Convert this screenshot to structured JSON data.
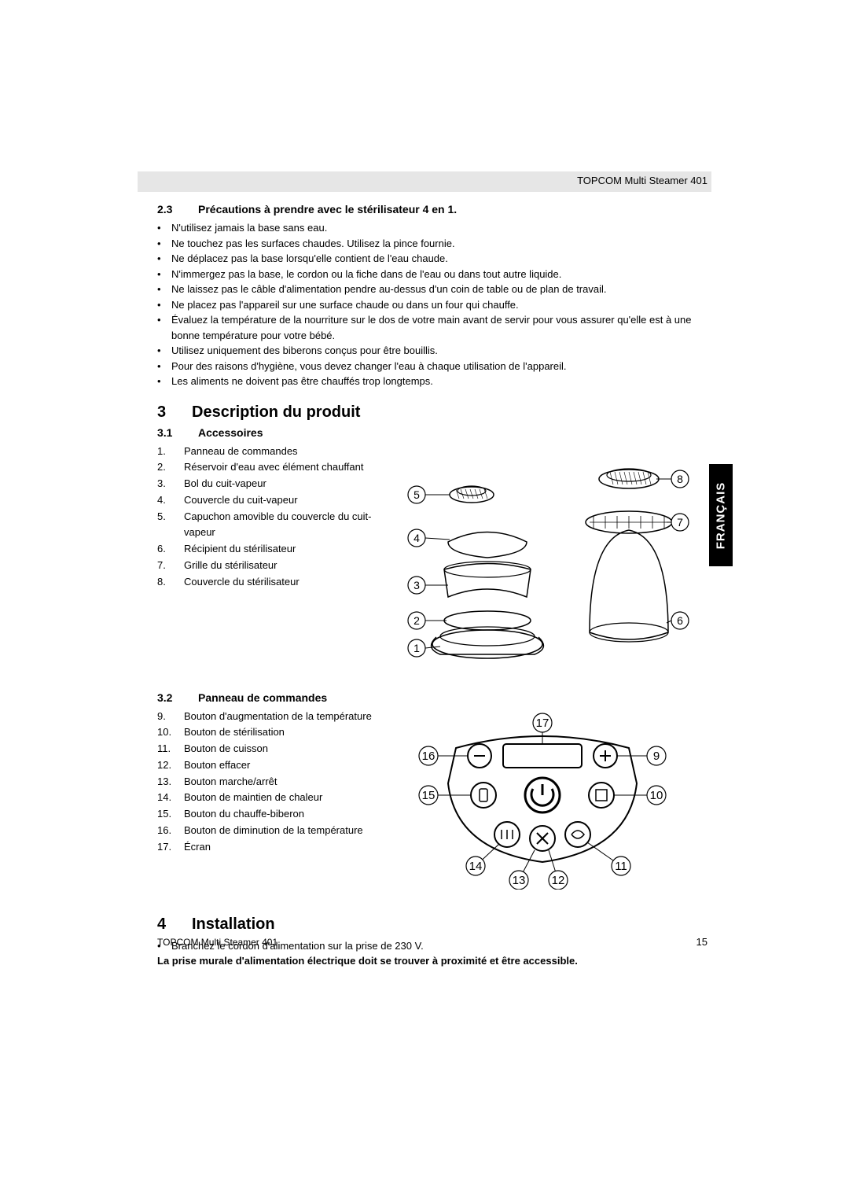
{
  "header": {
    "product": "TOPCOM Multi Steamer 401"
  },
  "sec23": {
    "num": "2.3",
    "title": "Précautions à prendre avec le stérilisateur 4 en 1.",
    "items": [
      "N'utilisez jamais la base sans eau.",
      "Ne touchez pas les surfaces chaudes. Utilisez la pince fournie.",
      "Ne déplacez pas la base lorsqu'elle contient de l'eau chaude.",
      "N'immergez pas la base, le cordon ou la fiche dans de l'eau ou dans tout autre liquide.",
      "Ne laissez pas le câble d'alimentation pendre au-dessus d'un coin de table ou de plan de travail.",
      "Ne placez pas l'appareil sur une surface chaude ou dans un four qui chauffe.",
      "Évaluez la température de la nourriture sur le dos de votre main avant de servir pour vous assurer qu'elle est à une bonne température pour votre bébé.",
      "Utilisez uniquement des biberons conçus pour être bouillis.",
      "Pour des raisons d'hygiène, vous devez changer l'eau à chaque utilisation de l'appareil.",
      "Les aliments ne doivent pas être chauffés trop longtemps."
    ]
  },
  "sec3": {
    "num": "3",
    "title": "Description du produit"
  },
  "sec31": {
    "num": "3.1",
    "title": "Accessoires",
    "items": [
      "Panneau de commandes",
      "Réservoir d'eau avec élément chauffant",
      "Bol du cuit-vapeur",
      "Couvercle du cuit-vapeur",
      "Capuchon amovible du couvercle du cuit-vapeur",
      "Récipient du stérilisateur",
      "Grille du stérilisateur",
      "Couvercle du stérilisateur"
    ]
  },
  "sec32": {
    "num": "3.2",
    "title": "Panneau de commandes",
    "start": 9,
    "items": [
      "Bouton d'augmentation de la température",
      "Bouton de stérilisation",
      "Bouton de cuisson",
      "Bouton effacer",
      "Bouton marche/arrêt",
      "Bouton de maintien de chaleur",
      "Bouton du chauffe-biberon",
      "Bouton de diminution de la température",
      "Écran"
    ]
  },
  "sec4": {
    "num": "4",
    "title": "Installation",
    "bullet": "Branchez le cordon d'alimentation sur la prise de 230 V.",
    "note": "La prise murale d'alimentation électrique doit se trouver à proximité et être accessible."
  },
  "footer": {
    "product": "TOPCOM Multi Steamer 401",
    "page": "15"
  },
  "langtab": "FRANÇAIS",
  "diagram1": {
    "labels": [
      "1",
      "2",
      "3",
      "4",
      "5",
      "6",
      "7",
      "8"
    ],
    "stroke": "#000000",
    "fill_none": "none",
    "circle_r": 11,
    "font_size": 14
  },
  "diagram2": {
    "labels": [
      "9",
      "10",
      "11",
      "12",
      "13",
      "14",
      "15",
      "16",
      "17"
    ],
    "stroke": "#000000",
    "circle_r": 12,
    "font_size": 15
  }
}
